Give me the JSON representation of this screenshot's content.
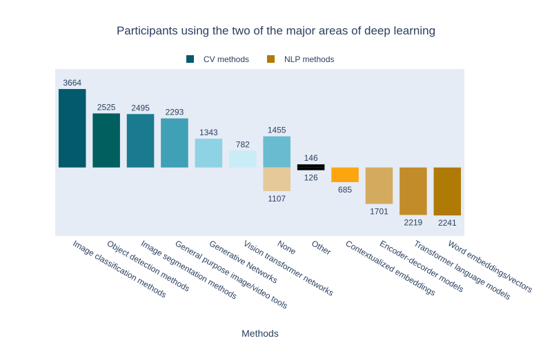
{
  "chart_data": {
    "type": "bar",
    "title": "Participants using the two of the major areas of deep learning",
    "xlabel": "Methods",
    "ylabel": "",
    "legend": {
      "placement": "top-center",
      "entries": [
        "CV methods",
        "NLP methods"
      ]
    },
    "legend_colors": {
      "CV methods": "#025a6c",
      "NLP methods": "#b07a06"
    },
    "plot_background": "#e5ecf6",
    "ylim": [
      -3200,
      4600
    ],
    "grid": false,
    "categories": [
      "Image classification methods",
      "Object detection methods",
      "Image segmentation methods",
      "General purpose image/video tools",
      "Generative Networks",
      "Vision transformer networks",
      "None",
      "Other",
      "Contextualized embeddings",
      "Encoder-decorder models",
      "Transformer language models",
      "Word embeddings/vectors"
    ],
    "series": [
      {
        "name": "CV methods",
        "direction": "up",
        "values": [
          3664,
          2525,
          2495,
          2293,
          1343,
          782,
          1455,
          146,
          null,
          null,
          null,
          null
        ],
        "colors": [
          "#025a6c",
          "#025f5f",
          "#1a7a8f",
          "#40a0b5",
          "#8ed3e3",
          "#c9ecf7",
          "#69bbd0",
          "#000000",
          null,
          null,
          null,
          null
        ]
      },
      {
        "name": "NLP methods",
        "direction": "down",
        "values": [
          null,
          null,
          null,
          null,
          null,
          null,
          1107,
          126,
          685,
          1701,
          2219,
          2241
        ],
        "colors": [
          null,
          null,
          null,
          null,
          null,
          null,
          "#e5c999",
          "#000000",
          "#fda50f",
          "#d4aa5e",
          "#c38c2a",
          "#b07a06"
        ]
      }
    ]
  }
}
